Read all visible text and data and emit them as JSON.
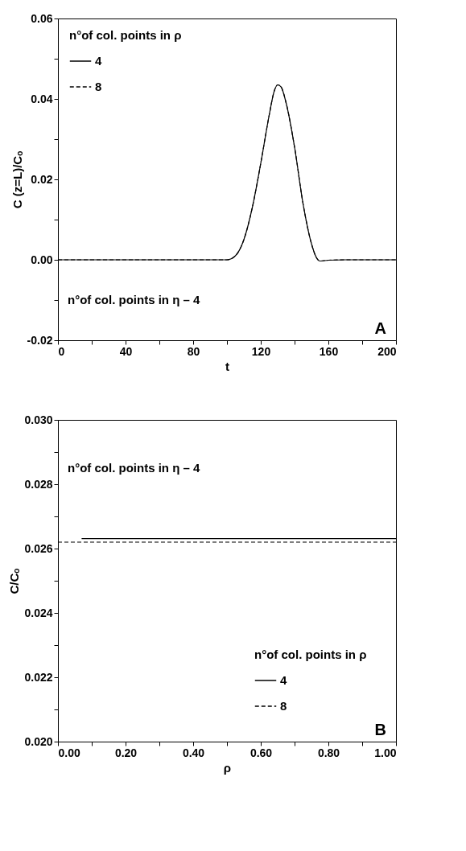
{
  "chart_data": [
    {
      "type": "line",
      "xlabel": "t",
      "ylabel": "C (z=L)/Cₒ",
      "legend_title": "n°of col. points in ρ",
      "legend": "top left",
      "grid": false,
      "annotations": [
        "n°of col. points in η – 4",
        "A"
      ],
      "xlim": [
        0,
        200
      ],
      "ylim": [
        -0.02,
        0.06
      ],
      "xticks": [
        0,
        {
          "value": 20,
          "label": null
        },
        40,
        {
          "value": 60,
          "label": null
        },
        80,
        {
          "value": 100,
          "label": null
        },
        120,
        {
          "value": 140,
          "label": null
        },
        160,
        {
          "value": 180,
          "label": null
        },
        200
      ],
      "yticks": [
        {
          "value": -0.02,
          "label": "-0.02"
        },
        {
          "value": -0.01,
          "label": null
        },
        {
          "value": 0,
          "label": "0.00"
        },
        {
          "value": 0.01,
          "label": null
        },
        {
          "value": 0.02,
          "label": "0.02"
        },
        {
          "value": 0.03,
          "label": null
        },
        {
          "value": 0.04,
          "label": "0.04"
        },
        {
          "value": 0.05,
          "label": null
        },
        {
          "value": 0.06,
          "label": "0.06"
        }
      ],
      "x": [
        0,
        50,
        100,
        105,
        110,
        115,
        120,
        125,
        128,
        130,
        132,
        135,
        140,
        145,
        150,
        153,
        155,
        160,
        170,
        200
      ],
      "series": [
        {
          "name": "4",
          "color": "#000000",
          "line_style": "solid",
          "values": [
            0,
            0,
            0,
            0.001,
            0.005,
            0.013,
            0.024,
            0.036,
            0.042,
            0.0435,
            0.043,
            0.039,
            0.028,
            0.014,
            0.004,
            0.0005,
            -0.0003,
            -0.0001,
            0,
            0
          ]
        },
        {
          "name": "8",
          "color": "#000000",
          "line_style": "dashed",
          "values": [
            0,
            0,
            0,
            0.001,
            0.005,
            0.013,
            0.024,
            0.036,
            0.042,
            0.0435,
            0.043,
            0.039,
            0.028,
            0.014,
            0.004,
            0.0005,
            -0.0003,
            -0.0001,
            0,
            0
          ]
        }
      ]
    },
    {
      "type": "line",
      "xlabel": "ρ",
      "ylabel": "C/Cₒ",
      "legend_title": "n°of col. points in ρ",
      "legend": "bottom right",
      "grid": false,
      "annotations": [
        "n°of col. points in η – 4",
        "B"
      ],
      "xlim": [
        0,
        1
      ],
      "ylim": [
        0.02,
        0.03
      ],
      "xticks": [
        {
          "value": 0,
          "label": "0.00"
        },
        {
          "value": 0.1,
          "label": null
        },
        {
          "value": 0.2,
          "label": "0.20"
        },
        {
          "value": 0.3,
          "label": null
        },
        {
          "value": 0.4,
          "label": "0.40"
        },
        {
          "value": 0.5,
          "label": null
        },
        {
          "value": 0.6,
          "label": "0.60"
        },
        {
          "value": 0.7,
          "label": null
        },
        {
          "value": 0.8,
          "label": "0.80"
        },
        {
          "value": 0.9,
          "label": null
        },
        {
          "value": 1,
          "label": "1.00"
        }
      ],
      "yticks": [
        {
          "value": 0.02,
          "label": "0.020"
        },
        {
          "value": 0.021,
          "label": null
        },
        {
          "value": 0.022,
          "label": "0.022"
        },
        {
          "value": 0.023,
          "label": null
        },
        {
          "value": 0.024,
          "label": "0.024"
        },
        {
          "value": 0.025,
          "label": null
        },
        {
          "value": 0.026,
          "label": "0.026"
        },
        {
          "value": 0.027,
          "label": null
        },
        {
          "value": 0.028,
          "label": "0.028"
        },
        {
          "value": 0.029,
          "label": null
        },
        {
          "value": 0.03,
          "label": "0.030"
        }
      ],
      "series": [
        {
          "name": "4",
          "color": "#000000",
          "line_style": "solid",
          "x": [
            0.07,
            1
          ],
          "values": [
            0.02631,
            0.02631
          ]
        },
        {
          "name": "8",
          "color": "#000000",
          "line_style": "dashed",
          "x": [
            0,
            1
          ],
          "values": [
            0.0262,
            0.0262
          ]
        }
      ]
    }
  ]
}
